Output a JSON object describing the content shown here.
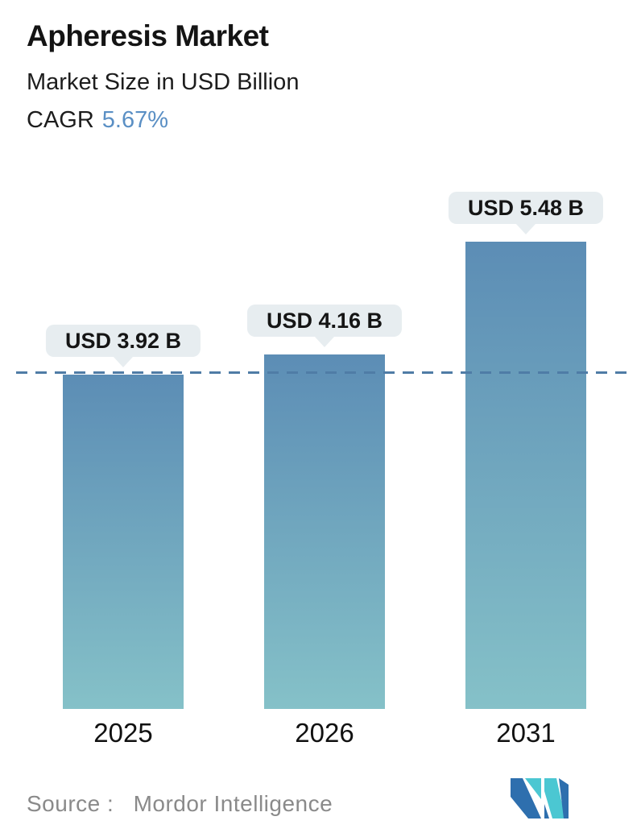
{
  "header": {
    "title": "Apheresis Market",
    "subtitle": "Market Size in USD Billion",
    "cagr_label": "CAGR",
    "cagr_value": "5.67%"
  },
  "chart_data": {
    "type": "bar",
    "title": "Apheresis Market",
    "subtitle": "Market Size in USD Billion",
    "cagr_pct": 5.67,
    "categories": [
      "2025",
      "2026",
      "2031"
    ],
    "values": [
      3.92,
      4.16,
      5.48
    ],
    "value_labels": [
      "USD 3.92 B",
      "USD 4.16 B",
      "USD 5.48 B"
    ],
    "unit": "USD Billion",
    "ylim": [
      0,
      5.9
    ],
    "grid": false,
    "legend": "none",
    "reference_line": {
      "value": 3.92,
      "style": "dashed",
      "color": "#4f7ca6"
    },
    "bar_gradient_top": "#5c8db5",
    "bar_gradient_bottom": "#85c1c8",
    "bubble_bg": "#e7edf0"
  },
  "footer": {
    "source_label": "Source :",
    "source_value": "Mordor Intelligence",
    "logo_name": "mordor-intelligence-logo",
    "logo_blue": "#2e6fae",
    "logo_teal": "#4bc7d2"
  },
  "colors": {
    "accent_blue": "#5a8fc4",
    "text_dark": "#141414",
    "text_gray": "#8a8a8a",
    "background": "#ffffff"
  }
}
